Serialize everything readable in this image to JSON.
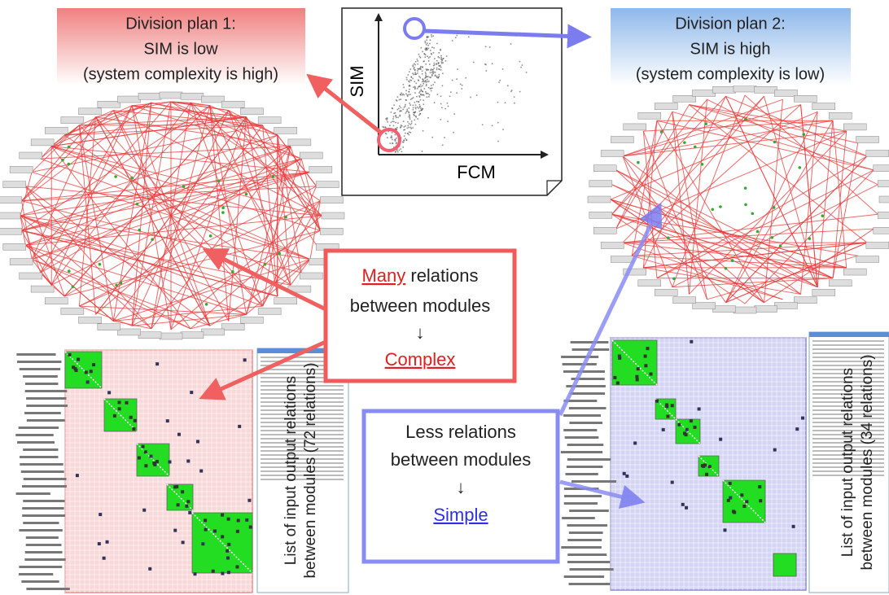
{
  "plans": [
    {
      "lines": [
        "Division plan 1:",
        "SIM is low",
        "(system complexity is high)"
      ]
    },
    {
      "lines": [
        "Division plan 2:",
        "SIM is high",
        "(system complexity is low)"
      ]
    }
  ],
  "scatter": {
    "y_label": "SIM",
    "x_label": "FCM"
  },
  "callouts": [
    {
      "emphasis": "Many",
      "rest": " relations",
      "line2": "between modules",
      "arrow": "↓",
      "result": "Complex"
    },
    {
      "line1": "Less relations",
      "line2": "between modules",
      "arrow": "↓",
      "result": "Simple"
    }
  ],
  "relation_lists": [
    {
      "line1": "List of input output relations",
      "line2": "between modules (72 relations)"
    },
    {
      "line1": "List of input output relations",
      "line2": "between modules (34 relations)"
    }
  ]
}
